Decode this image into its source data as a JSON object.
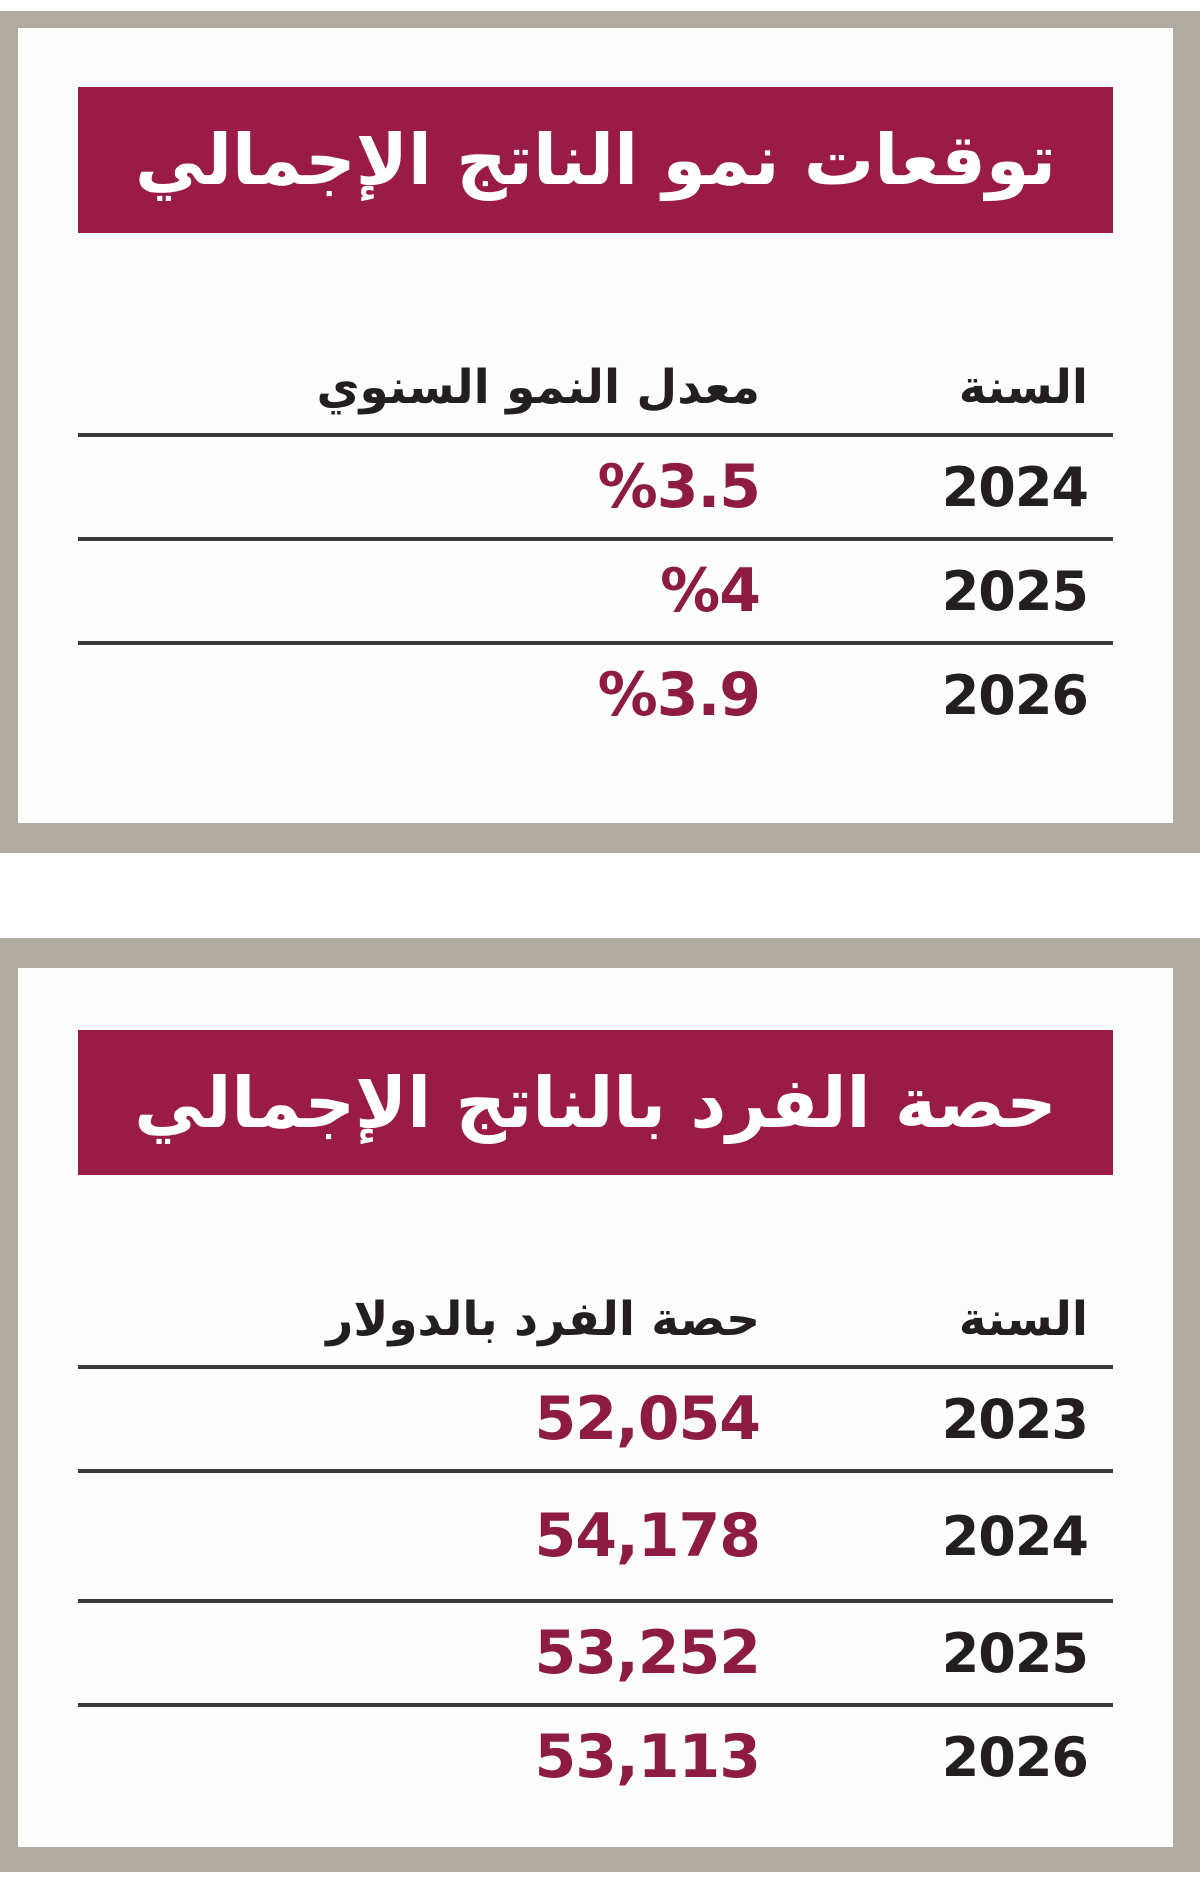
{
  "colors": {
    "accent_banner": "#9a1b45",
    "value_text": "#8e1b41",
    "heading_text": "#231f20",
    "divider": "#3a3a3a",
    "frame": "#afaba1",
    "card_background": "#fdfdfd"
  },
  "chart_data": [
    {
      "type": "table",
      "title": "توقعات نمو الناتج الإجمالي",
      "columns": [
        "السنة",
        "معدل النمو السنوي"
      ],
      "rows": [
        [
          "2024",
          "%3.5"
        ],
        [
          "2025",
          "%4"
        ],
        [
          "2026",
          "%3.9"
        ]
      ],
      "values_numeric_percent": [
        3.5,
        4,
        3.9
      ],
      "layout_hints": "two-column RTL table, year column right, maroon values, dark row dividers"
    },
    {
      "type": "table",
      "title": "حصة الفرد بالناتج الإجمالي",
      "columns": [
        "السنة",
        "حصة الفرد بالدولار"
      ],
      "rows": [
        [
          "2023",
          "52,054"
        ],
        [
          "2024",
          "54,178"
        ],
        [
          "2025",
          "53,252"
        ],
        [
          "2026",
          "53,113"
        ]
      ],
      "values_numeric_usd": [
        52054,
        54178,
        53252,
        53113
      ],
      "layout_hints": "two-column RTL table, year column right, maroon values, dark row dividers"
    }
  ]
}
